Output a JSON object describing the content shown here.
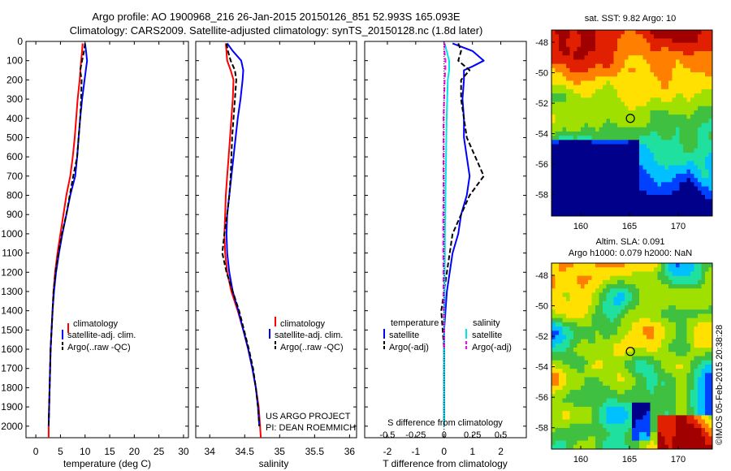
{
  "header": {
    "title_line1": "Argo profile: AO 1900968_216 26-Jan-2015 20150126_851 52.993S 165.093E",
    "title_line2": "Climatology: CARS2009. Satellite-adjusted climatology: synTS_20150128.nc (1.8d later)"
  },
  "colors": {
    "climatology": "#ff0000",
    "satellite": "#0000ff",
    "argo": "#000000",
    "satellite_salinity": "#00e5e5",
    "argo_salinity_diff": "#ff00ff"
  },
  "credits": {
    "line1": "US ARGO PROJECT",
    "line2": "PI: DEAN ROEMMICH"
  },
  "watermark": "©IMOS 05-Feb-2015 20:38:28",
  "chart_data": [
    {
      "id": "temperature",
      "type": "line",
      "xlabel": "temperature (deg C)",
      "xlim": [
        -2,
        31
      ],
      "xticks": [
        0,
        5,
        10,
        15,
        20,
        25,
        30
      ],
      "ylim": [
        0,
        2060
      ],
      "yticks": [
        0,
        100,
        200,
        300,
        400,
        500,
        600,
        700,
        800,
        900,
        1000,
        1100,
        1200,
        1300,
        1400,
        1500,
        1600,
        1700,
        1800,
        1900,
        2000
      ],
      "legend": [
        "climatology",
        "satellite-adj. clim.",
        "Argo(..raw -QC)"
      ],
      "series": [
        {
          "name": "climatology",
          "color": "#ff0000",
          "style": "solid",
          "depth": [
            10,
            50,
            100,
            200,
            300,
            400,
            500,
            600,
            700,
            800,
            900,
            1000,
            1100,
            1200,
            1300,
            1400,
            1500,
            1600,
            1700,
            1800,
            1900,
            2000,
            2060
          ],
          "values": [
            9.5,
            9.4,
            9.2,
            8.9,
            8.5,
            8.2,
            7.9,
            7.5,
            7.0,
            6.2,
            5.6,
            5.0,
            4.4,
            3.9,
            3.6,
            3.4,
            3.2,
            3.0,
            2.9,
            2.8,
            2.7,
            2.6,
            2.6
          ]
        },
        {
          "name": "satellite-adj. clim.",
          "color": "#0000ff",
          "style": "solid",
          "depth": [
            10,
            50,
            100,
            200,
            300,
            400,
            500,
            600,
            700,
            800,
            900,
            1000,
            1100,
            1200,
            1300,
            1400,
            1500,
            1600,
            1700,
            1800,
            1900,
            2000
          ],
          "values": [
            10.0,
            10.2,
            10.4,
            9.9,
            9.4,
            9.0,
            8.7,
            8.4,
            8.0,
            7.0,
            6.2,
            5.4,
            4.7,
            4.1,
            3.7,
            3.4,
            3.2,
            3.0,
            2.9,
            2.8,
            2.7,
            2.6
          ]
        },
        {
          "name": "Argo(..raw -QC)",
          "color": "#000000",
          "style": "dashed",
          "depth": [
            10,
            50,
            100,
            150,
            200,
            300,
            400,
            500,
            600,
            700,
            800,
            900,
            1000,
            1100,
            1200,
            1300,
            1400,
            1500,
            1600,
            1700,
            1800,
            1900,
            2000
          ],
          "values": [
            10.0,
            9.8,
            9.4,
            9.0,
            9.3,
            9.2,
            9.0,
            8.7,
            8.4,
            7.6,
            6.9,
            6.2,
            5.3,
            4.6,
            4.0,
            3.6,
            3.4,
            3.2,
            3.0,
            2.9,
            2.8,
            2.7,
            2.6
          ]
        }
      ]
    },
    {
      "id": "salinity",
      "type": "line",
      "xlabel": "salinity",
      "xlim": [
        33.8,
        36.1
      ],
      "xticks": [
        34,
        34.5,
        35,
        35.5,
        36
      ],
      "xticklabels": [
        "34",
        "34.5",
        "35",
        "35.5",
        "36"
      ],
      "ylim": [
        0,
        2060
      ],
      "legend": [
        "climatology",
        "satellite-adj. clim.",
        "Argo(..raw -QC)"
      ],
      "series": [
        {
          "name": "climatology",
          "color": "#ff0000",
          "style": "solid",
          "depth": [
            10,
            100,
            150,
            200,
            300,
            400,
            500,
            600,
            700,
            800,
            900,
            1000,
            1100,
            1200,
            1300,
            1400,
            1500,
            1600,
            1700,
            1800,
            1900,
            2000,
            2060
          ],
          "values": [
            34.23,
            34.25,
            34.3,
            34.34,
            34.33,
            34.31,
            34.29,
            34.27,
            34.25,
            34.23,
            34.22,
            34.21,
            34.22,
            34.25,
            34.31,
            34.4,
            34.48,
            34.55,
            34.61,
            34.66,
            34.7,
            34.72,
            34.73
          ]
        },
        {
          "name": "satellite-adj. clim.",
          "color": "#0000ff",
          "style": "solid",
          "depth": [
            10,
            50,
            100,
            150,
            200,
            300,
            400,
            500,
            600,
            700,
            800,
            900,
            1000,
            1100,
            1200,
            1300,
            1400,
            1500,
            1600,
            1700,
            1800,
            1900,
            2000
          ],
          "values": [
            34.25,
            34.33,
            34.45,
            34.48,
            34.47,
            34.44,
            34.4,
            34.37,
            34.34,
            34.31,
            34.28,
            34.25,
            34.24,
            34.25,
            34.28,
            34.33,
            34.41,
            34.48,
            34.55,
            34.61,
            34.66,
            34.69,
            34.71
          ]
        },
        {
          "name": "Argo(..raw -QC)",
          "color": "#000000",
          "style": "dashed",
          "depth": [
            10,
            50,
            100,
            150,
            200,
            300,
            400,
            500,
            600,
            700,
            800,
            900,
            1000,
            1100,
            1200,
            1300,
            1400,
            1500,
            1600,
            1700,
            1800,
            1900,
            2000
          ],
          "values": [
            34.24,
            34.26,
            34.3,
            34.36,
            34.38,
            34.36,
            34.34,
            34.32,
            34.31,
            34.3,
            34.28,
            34.25,
            34.21,
            34.18,
            34.24,
            34.33,
            34.42,
            34.49,
            34.56,
            34.62,
            34.66,
            34.69,
            34.71
          ]
        }
      ]
    },
    {
      "id": "differences",
      "type": "line",
      "xlabel": "T difference from climatology",
      "xticks": [
        -2,
        -1,
        0,
        1,
        2
      ],
      "xlim": [
        -2.8,
        2.9
      ],
      "top_label": "S difference from climatology",
      "top_ticklabels": [
        "-0.5",
        "-0.25",
        "0",
        "0.25",
        "0.5"
      ],
      "ylim": [
        0,
        2060
      ],
      "legend_groups": [
        {
          "heading": "temperature",
          "items": [
            "satellite",
            "Argo(-adj)"
          ]
        },
        {
          "heading": "salinity",
          "items": [
            "satellite",
            "Argo(-adj)"
          ]
        }
      ],
      "series": [
        {
          "name": "temperature satellite",
          "color": "#0000ff",
          "style": "solid",
          "depth": [
            10,
            50,
            100,
            130,
            150,
            200,
            300,
            400,
            500,
            600,
            700,
            800,
            900,
            1000,
            1100,
            1200,
            1300,
            1400,
            1500,
            1600,
            1700,
            1800,
            1900,
            2000
          ],
          "values": [
            0.3,
            1.0,
            1.4,
            1.0,
            0.7,
            0.7,
            0.65,
            0.7,
            0.7,
            0.8,
            0.9,
            0.8,
            0.6,
            0.5,
            0.3,
            0.2,
            0.1,
            0.05,
            0.0,
            0.0,
            0.0,
            0.0,
            0.0,
            0.0
          ]
        },
        {
          "name": "temperature Argo(-adj)",
          "color": "#000000",
          "style": "dashed",
          "depth": [
            10,
            50,
            100,
            150,
            200,
            300,
            400,
            500,
            600,
            700,
            800,
            900,
            1000,
            1100,
            1200,
            1300,
            1400,
            1500,
            1600,
            1700,
            1800,
            1900,
            2000
          ],
          "values": [
            0.5,
            0.6,
            0.5,
            0.9,
            0.6,
            0.6,
            0.7,
            0.8,
            1.1,
            1.4,
            0.9,
            0.6,
            0.3,
            0.2,
            0.1,
            0.0,
            -0.1,
            -0.05,
            0.0,
            0.0,
            0.0,
            0.0,
            0.0
          ]
        },
        {
          "name": "salinity satellite",
          "color": "#00e5e5",
          "style": "solid",
          "depth": [
            10,
            100,
            150,
            200,
            300,
            400,
            500,
            600,
            700,
            800,
            900,
            1000,
            1100,
            1200,
            1300,
            1400,
            1500,
            1600,
            1700,
            1800,
            1900,
            2000
          ],
          "values": [
            0.02,
            0.18,
            0.18,
            0.13,
            0.11,
            0.09,
            0.08,
            0.07,
            0.06,
            0.05,
            0.04,
            0.03,
            0.03,
            0.02,
            0.02,
            0.01,
            0.0,
            0.0,
            0.0,
            0.0,
            0.0,
            0.0
          ]
        },
        {
          "name": "salinity Argo(-adj)",
          "color": "#ff00ff",
          "style": "dashed",
          "depth": [
            10,
            50,
            100,
            150,
            200,
            300,
            400,
            500,
            600,
            700,
            800,
            900,
            1000,
            1100,
            1200,
            1300,
            1400,
            1500,
            1600
          ],
          "values": [
            0.02,
            0.01,
            0.05,
            0.04,
            0.02,
            0.0,
            -0.02,
            -0.02,
            -0.02,
            -0.02,
            -0.02,
            -0.03,
            -0.03,
            -0.03,
            -0.02,
            -0.02,
            -0.01,
            0.0,
            0.0
          ]
        }
      ]
    },
    {
      "id": "sst_map",
      "type": "heatmap",
      "title": "sat. SST: 9.82 Argo: 10",
      "xticks": [
        160,
        165,
        170
      ],
      "yticks": [
        -48,
        -50,
        -52,
        -54,
        -56,
        -58
      ],
      "xlim": [
        157,
        173.5
      ],
      "ylim": [
        -59.4,
        -47.2
      ],
      "marker": {
        "lon": 165.093,
        "lat": -52.993
      },
      "colormap": [
        "#00008b",
        "#0040ff",
        "#00c0ff",
        "#20e0a0",
        "#40c040",
        "#a0e000",
        "#ffe000",
        "#ff8000",
        "#e02000",
        "#a00000"
      ]
    },
    {
      "id": "sla_map",
      "type": "heatmap",
      "title_line1": "Altim. SLA: 0.091",
      "title_line2": "Argo h1000: 0.079 h2000: NaN",
      "xticks": [
        160,
        165,
        170
      ],
      "yticks": [
        -48,
        -50,
        -52,
        -54,
        -56,
        -58
      ],
      "xlim": [
        157,
        173.5
      ],
      "ylim": [
        -59.4,
        -47.2
      ],
      "marker": {
        "lon": 165.093,
        "lat": -52.993
      },
      "colormap": [
        "#00008b",
        "#0040ff",
        "#00c0ff",
        "#20e0a0",
        "#40c040",
        "#a0e000",
        "#ffe000",
        "#ff8000",
        "#e02000",
        "#a00000"
      ]
    }
  ]
}
